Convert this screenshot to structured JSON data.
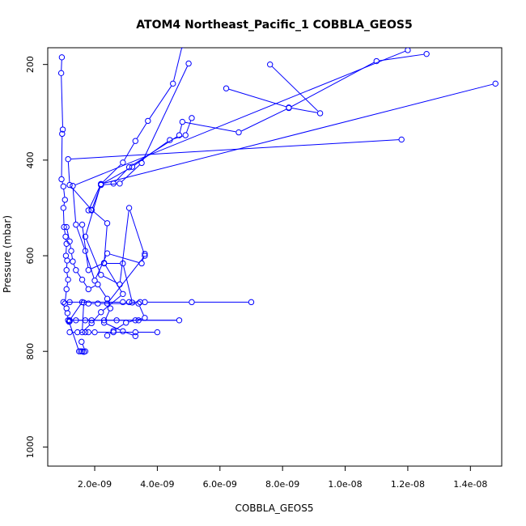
{
  "chart_data": {
    "type": "line",
    "title": "ATOM4 Northeast_Pacific_1 COBBLA_GEOS5",
    "xlabel": "COBBLA_GEOS5",
    "ylabel": "Pressure (mbar)",
    "xlim": [
      5e-10,
      1.5e-08
    ],
    "ylim": [
      1040,
      165
    ],
    "y_reversed": true,
    "grid": false,
    "x_ticks": [
      {
        "value": 2e-09,
        "label": "2.0e-09"
      },
      {
        "value": 4e-09,
        "label": "4.0e-09"
      },
      {
        "value": 6e-09,
        "label": "6.0e-09"
      },
      {
        "value": 8e-09,
        "label": "8.0e-09"
      },
      {
        "value": 1e-08,
        "label": "1.0e-08"
      },
      {
        "value": 1.2e-08,
        "label": "1.2e-08"
      },
      {
        "value": 1.4e-08,
        "label": "1.4e-08"
      }
    ],
    "y_ticks": [
      {
        "value": 200,
        "label": "200"
      },
      {
        "value": 400,
        "label": "400"
      },
      {
        "value": 600,
        "label": "600"
      },
      {
        "value": 800,
        "label": "800"
      },
      {
        "value": 1000,
        "label": "1000"
      }
    ],
    "series_color": "#0000ff",
    "marker": "open-circle",
    "series": [
      {
        "x": [
          9.5e-10,
          9.3e-10,
          9.8e-10,
          9.6e-10,
          9.4e-10,
          1e-09,
          1.05e-09,
          1e-09,
          1.02e-09,
          1.07e-09,
          1.1e-09,
          1.08e-09,
          1.12e-09,
          1.1e-09,
          1.15e-09,
          1.1e-09,
          1.05e-09,
          1.1e-09,
          1.13e-09,
          1.15e-09,
          1.2e-09,
          1.18e-09,
          1.5e-09,
          1.55e-09,
          1.6e-09,
          1.65e-09,
          1.7e-09,
          1.58e-09
        ],
        "y": [
          185,
          218,
          336,
          345,
          440,
          455,
          483,
          500,
          540,
          560,
          575,
          600,
          610,
          630,
          650,
          670,
          700,
          710,
          720,
          735,
          737,
          738,
          800,
          800,
          800,
          801,
          800,
          780
        ]
      },
      {
        "x": [
          1.1e-09,
          1.2e-09,
          1.25e-09,
          1.3e-09,
          1.4e-09,
          1.6e-09,
          1.8e-09,
          2.1e-09,
          2.4e-09,
          2.5e-09,
          2.3e-09,
          2.9e-09,
          3.3e-09
        ],
        "y": [
          540,
          570,
          590,
          612,
          630,
          650,
          670,
          660,
          690,
          710,
          740,
          758,
          768
        ]
      },
      {
        "x": [
          4.8e-09,
          4.5e-09,
          3.7e-09,
          3.3e-09,
          2.9e-09,
          2.2e-09,
          1.8e-09
        ],
        "y": [
          160,
          240,
          318,
          360,
          405,
          450,
          505
        ]
      },
      {
        "x": [
          5.1e-09,
          4.9e-09,
          4.4e-09,
          3.2e-09,
          2.2e-09
        ],
        "y": [
          312,
          348,
          358,
          414,
          451
        ]
      },
      {
        "x": [
          5e-09,
          3.5e-09,
          2.8e-09,
          2.2e-09,
          1.9e-09
        ],
        "y": [
          198,
          406,
          449,
          452,
          505
        ]
      },
      {
        "x": [
          1.48e-08,
          2.2e-09,
          1.7e-09,
          2.2e-09,
          2.8e-09,
          3.1e-09,
          3.6e-09,
          2.4e-09
        ],
        "y": [
          240,
          450,
          560,
          640,
          660,
          500,
          600,
          700
        ]
      },
      {
        "x": [
          1.26e-08,
          1.1e-08,
          8.2e-09,
          6.6e-09,
          4.8e-09,
          4.7e-09,
          3.1e-09,
          2.6e-09
        ],
        "y": [
          178,
          193,
          291,
          342,
          320,
          348,
          415,
          449
        ]
      },
      {
        "x": [
          6.2e-09,
          8.2e-09,
          9.2e-09,
          7.6e-09
        ],
        "y": [
          250,
          290,
          302,
          200
        ]
      },
      {
        "x": [
          1.18e-08,
          1.15e-09,
          1.2e-09,
          1.9e-09,
          2.4e-09,
          2.3e-09,
          2.9e-09,
          3.2e-09
        ],
        "y": [
          357,
          398,
          452,
          504,
          532,
          616,
          616,
          698
        ]
      },
      {
        "x": [
          1.2e-08,
          1.3e-09,
          1.4e-09,
          1.7e-09,
          2e-09,
          2.4e-09,
          3.5e-09,
          3.6e-09
        ],
        "y": [
          170,
          454,
          535,
          590,
          652,
          595,
          616,
          596
        ]
      },
      {
        "x": [
          7e-09,
          5.1e-09,
          3.6e-09,
          3.45e-09,
          3.1e-09,
          2.9e-09,
          1e-09,
          1.2e-09
        ],
        "y": [
          697,
          697,
          697,
          697,
          697,
          697,
          697,
          697
        ]
      },
      {
        "x": [
          1.6e-09,
          1.2e-09,
          4.7e-09,
          3.4e-09,
          2.7e-09,
          2.3e-09,
          1.9e-09,
          1.7e-09,
          1.4e-09
        ],
        "y": [
          697,
          735,
          735,
          735,
          735,
          735,
          735,
          735,
          735
        ]
      },
      {
        "x": [
          4e-09,
          3.3e-09,
          2.6e-09,
          2e-09,
          1.8e-09,
          1.7e-09,
          1.45e-09,
          1.2e-09
        ],
        "y": [
          760,
          760,
          760,
          760,
          760,
          760,
          760,
          760
        ]
      },
      {
        "x": [
          2.4e-09,
          2.6e-09,
          3e-09,
          3.3e-09,
          3.6e-09,
          3.4e-09,
          2.1e-09,
          1.8e-09
        ],
        "y": [
          767,
          757,
          740,
          735,
          730,
          700,
          700,
          700
        ]
      },
      {
        "x": [
          1.6e-09,
          1.8e-09,
          2.3e-09,
          2.9e-09,
          2.2e-09,
          1.9e-09,
          1.6e-09,
          1.65e-09
        ],
        "y": [
          535,
          630,
          615,
          680,
          718,
          741,
          760,
          698
        ]
      }
    ]
  }
}
